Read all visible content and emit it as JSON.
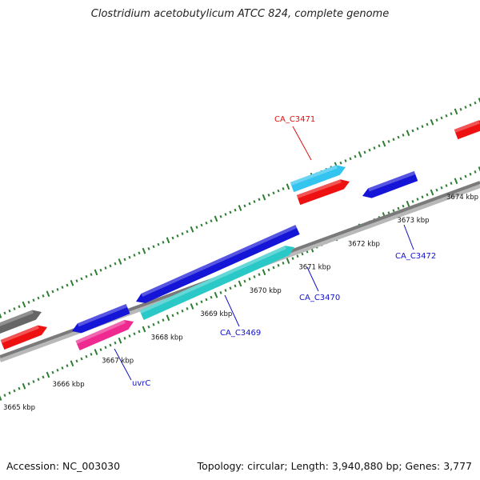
{
  "title": "Clostridium acetobutylicum ATCC 824, complete genome",
  "footer": {
    "accession": "Accession: NC_003030",
    "summary": "Topology: circular; Length: 3,940,880 bp; Genes: 3,777"
  },
  "colors": {
    "backbone": "#7a7a7a",
    "tick": "#2e7d32",
    "gene_red": "#ee1111",
    "gene_blue": "#1515d8",
    "gene_cyan": "#2bc8c8",
    "gene_lightblue": "#33c4f0",
    "gene_pink": "#ee2a90",
    "gene_gray": "#666666",
    "label_blue": "#1111cc",
    "label_red": "#dd1111"
  },
  "scale_labels": [
    {
      "text": "3665 kbp",
      "kbp": 3665
    },
    {
      "text": "3666 kbp",
      "kbp": 3666
    },
    {
      "text": "3667 kbp",
      "kbp": 3667
    },
    {
      "text": "3668 kbp",
      "kbp": 3668
    },
    {
      "text": "3669 kbp",
      "kbp": 3669
    },
    {
      "text": "3670 kbp",
      "kbp": 3670
    },
    {
      "text": "3671 kbp",
      "kbp": 3671
    },
    {
      "text": "3672 kbp",
      "kbp": 3672
    },
    {
      "text": "3673 kbp",
      "kbp": 3673
    },
    {
      "text": "3674 kbp",
      "kbp": 3674
    }
  ],
  "gene_labels": [
    {
      "id": "ca_c3471",
      "text": "CA_C3471"
    },
    {
      "id": "ca_c3472",
      "text": "CA_C3472"
    },
    {
      "id": "ca_c3470",
      "text": "CA_C3470"
    },
    {
      "id": "ca_c3469",
      "text": "CA_C3469"
    },
    {
      "id": "uvrc",
      "text": "uvrC"
    }
  ]
}
